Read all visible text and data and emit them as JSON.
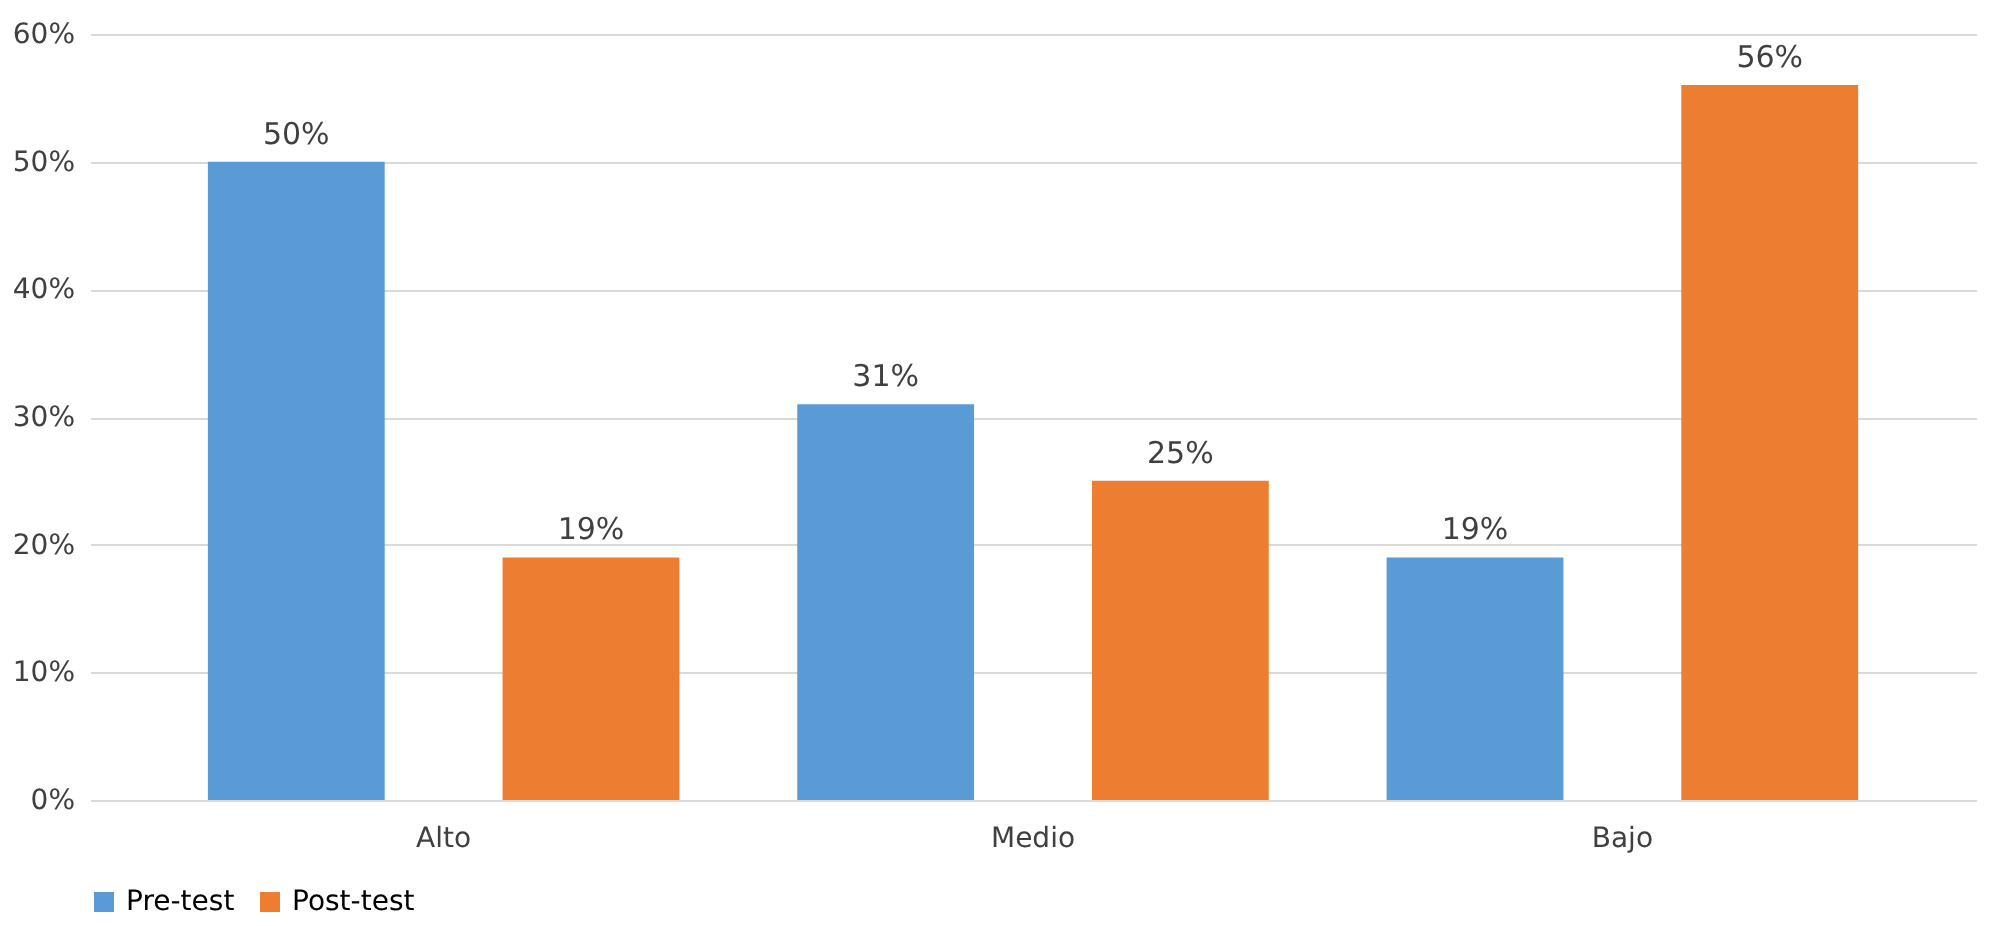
{
  "chart_data": {
    "type": "bar",
    "categories": [
      "Alto",
      "Medio",
      "Bajo"
    ],
    "series": [
      {
        "name": "Pre-test",
        "color": "#5b9bd5",
        "values": [
          50,
          31,
          19
        ],
        "value_labels": [
          "50%",
          "31%",
          "19%"
        ]
      },
      {
        "name": "Post-test",
        "color": "#ed7d31",
        "values": [
          19,
          25,
          56
        ],
        "value_labels": [
          "19%",
          "25%",
          "56%"
        ]
      }
    ],
    "ylim": [
      0,
      60
    ],
    "yticks": [
      {
        "value": 0,
        "label": "0%"
      },
      {
        "value": 10,
        "label": "10%"
      },
      {
        "value": 20,
        "label": "20%"
      },
      {
        "value": 30,
        "label": "30%"
      },
      {
        "value": 40,
        "label": "40%"
      },
      {
        "value": 50,
        "label": "50%"
      },
      {
        "value": 60,
        "label": "60%"
      }
    ],
    "grid": "y",
    "legend": "bottom"
  }
}
